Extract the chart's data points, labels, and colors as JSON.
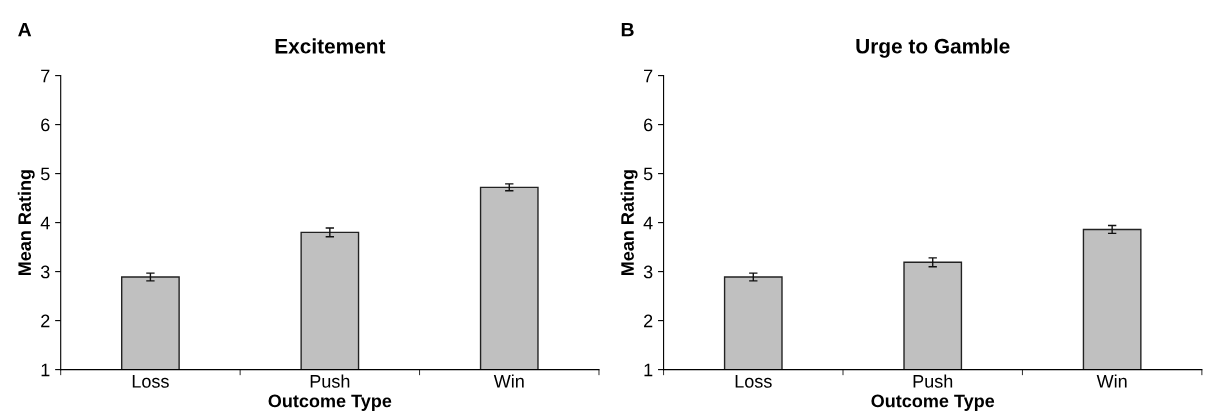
{
  "chart_data": [
    {
      "type": "bar",
      "title": "Excitement",
      "xlabel": "Outcome Type",
      "ylabel": "Mean Rating",
      "annotations": [
        "A"
      ],
      "categories": [
        "Loss",
        "Push",
        "Win"
      ],
      "series": [
        {
          "color": "#c0c0c0",
          "values": [
            2.89,
            3.8,
            4.72
          ],
          "errors": [
            0.08,
            0.09,
            0.07
          ]
        }
      ],
      "ylim": [
        1,
        7
      ],
      "yticks": [
        1,
        2,
        3,
        4,
        5,
        6,
        7
      ],
      "grid": false,
      "legend": false
    },
    {
      "type": "bar",
      "title": "Urge to Gamble",
      "xlabel": "Outcome Type",
      "ylabel": "Mean Rating",
      "annotations": [
        "B"
      ],
      "categories": [
        "Loss",
        "Push",
        "Win"
      ],
      "series": [
        {
          "color": "#c0c0c0",
          "values": [
            2.89,
            3.19,
            3.86
          ],
          "errors": [
            0.08,
            0.09,
            0.08
          ]
        }
      ],
      "ylim": [
        1,
        7
      ],
      "yticks": [
        1,
        2,
        3,
        4,
        5,
        6,
        7
      ],
      "grid": false,
      "legend": false
    }
  ]
}
